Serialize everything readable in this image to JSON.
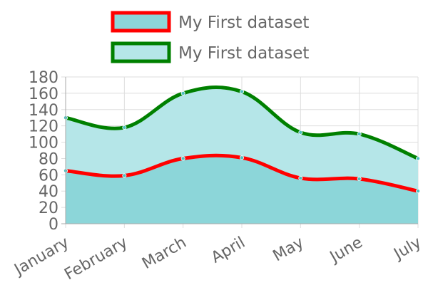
{
  "chart_data": {
    "type": "area",
    "stacked": true,
    "categories": [
      "January",
      "February",
      "March",
      "April",
      "May",
      "June",
      "July"
    ],
    "series": [
      {
        "name": "My First dataset",
        "values": [
          65,
          59,
          80,
          81,
          56,
          55,
          40
        ],
        "line_color": "#ff0000",
        "fill_color": "#8cd6d9"
      },
      {
        "name": "My First dataset",
        "values": [
          65,
          59,
          80,
          81,
          56,
          55,
          40
        ],
        "line_color": "#008000",
        "fill_color": "#b5e6e8"
      }
    ],
    "ylim": [
      0,
      180
    ],
    "y_ticks": [
      0,
      20,
      40,
      60,
      80,
      100,
      120,
      140,
      160,
      180
    ],
    "grid": true,
    "legend_position": "top-center",
    "point_color": "#4bc0c0"
  }
}
